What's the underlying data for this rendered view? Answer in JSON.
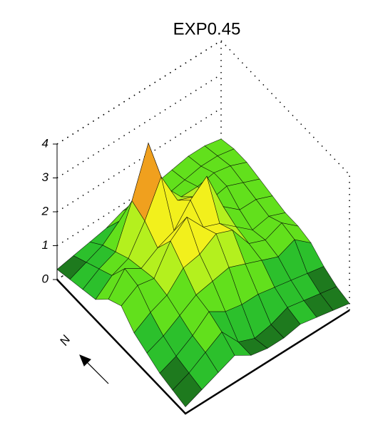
{
  "chart_data": {
    "type": "surface",
    "title": "EXP0.45",
    "north_label": "N",
    "zlim": [
      0,
      4
    ],
    "zticks": [
      0,
      1,
      2,
      3,
      4
    ],
    "colors": [
      "#1e7a1e",
      "#2cc02c",
      "#62e01c",
      "#b4f01e",
      "#f2f01c",
      "#f0a01e",
      "#e41e10",
      "#7a2a0c"
    ],
    "z": [
      [
        0.3,
        0.4,
        0.5,
        0.6,
        0.8,
        0.9,
        1.0,
        1.1,
        1.2,
        1.2,
        1.1
      ],
      [
        0.4,
        0.6,
        0.8,
        1.2,
        1.4,
        1.2,
        1.1,
        1.2,
        1.3,
        1.3,
        1.2
      ],
      [
        0.5,
        0.8,
        1.0,
        2.2,
        3.6,
        2.0,
        1.4,
        1.4,
        1.5,
        1.4,
        1.2
      ],
      [
        0.6,
        1.0,
        1.2,
        2.0,
        3.0,
        2.0,
        1.8,
        1.4,
        1.5,
        1.3,
        1.1
      ],
      [
        1.0,
        1.6,
        1.3,
        1.6,
        1.8,
        2.4,
        2.8,
        1.6,
        1.2,
        1.2,
        1.0
      ],
      [
        1.2,
        1.5,
        1.4,
        2.2,
        2.6,
        2.0,
        1.8,
        1.4,
        1.0,
        1.1,
        0.9
      ],
      [
        0.8,
        1.1,
        1.3,
        1.8,
        1.9,
        2.2,
        2.0,
        1.3,
        1.1,
        1.3,
        0.9
      ],
      [
        0.6,
        0.8,
        1.1,
        1.4,
        1.5,
        1.6,
        1.4,
        1.2,
        1.0,
        1.2,
        0.8
      ],
      [
        0.4,
        0.6,
        0.9,
        1.3,
        1.0,
        0.9,
        0.9,
        0.8,
        0.7,
        0.6,
        0.5
      ],
      [
        0.3,
        0.5,
        0.8,
        1.1,
        0.5,
        0.3,
        0.4,
        0.6,
        0.5,
        0.4,
        0.3
      ],
      [
        0.2,
        0.4,
        0.6,
        0.8,
        0.5,
        0.4,
        0.4,
        0.5,
        0.4,
        0.3,
        0.2
      ]
    ]
  }
}
